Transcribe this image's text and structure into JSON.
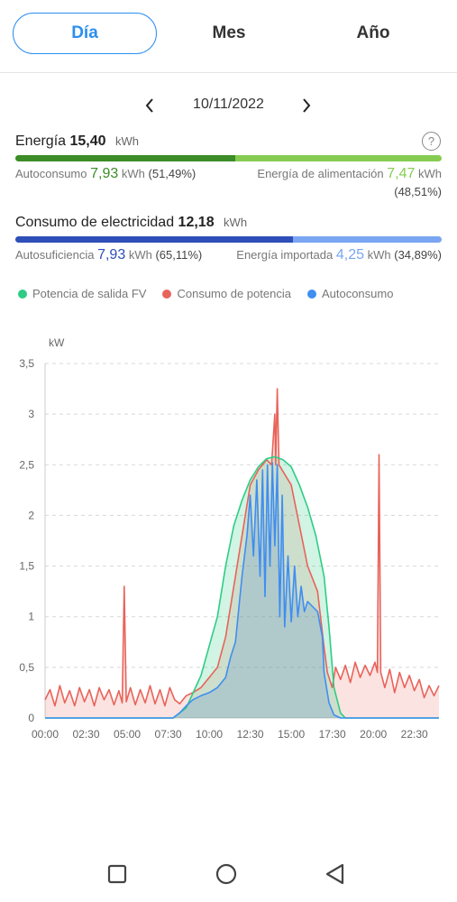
{
  "tabs": [
    {
      "label": "Día",
      "active": true
    },
    {
      "label": "Mes",
      "active": false
    },
    {
      "label": "Año",
      "active": false
    }
  ],
  "date": "10/11/2022",
  "energy": {
    "title": "Energía",
    "value": "15,40",
    "unit": "kWh",
    "self_label": "Autoconsumo",
    "self_value": "7,93",
    "self_unit": "kWh",
    "self_pct": "(51,49%)",
    "feed_label": "Energía de alimentación",
    "feed_value": "7,47",
    "feed_unit": "kWh",
    "feed_pct": "(48,51%)",
    "split_fraction": 0.5149
  },
  "consumption": {
    "title": "Consumo de electricidad",
    "value": "12,18",
    "unit": "kWh",
    "suff_label": "Autosuficiencia",
    "suff_value": "7,93",
    "suff_unit": "kWh",
    "suff_pct": "(65,11%)",
    "imp_label": "Energía importada",
    "imp_value": "4,25",
    "imp_unit": "kWh",
    "imp_pct": "(34,89%)",
    "split_fraction": 0.6511
  },
  "legend": [
    {
      "label": "Potencia de salida FV",
      "color": "#2ecc85"
    },
    {
      "label": "Consumo de potencia",
      "color": "#e8635a"
    },
    {
      "label": "Autoconsumo",
      "color": "#3f8ef0"
    }
  ],
  "colors": {
    "accent": "#2b8ff0",
    "energy_dark": "#3c8c27",
    "energy_light": "#86cc52",
    "cons_dark": "#2e4eb8",
    "cons_light": "#7aa5f2"
  },
  "chart_data": {
    "type": "area",
    "y_unit_label": "kW",
    "ylim": [
      0,
      3.5
    ],
    "y_ticks": [
      "0",
      "0,5",
      "1",
      "1,5",
      "2",
      "2,5",
      "3",
      "3,5"
    ],
    "x_ticks": [
      "00:00",
      "02:30",
      "05:00",
      "07:30",
      "10:00",
      "12:30",
      "15:00",
      "17:30",
      "20:00",
      "22:30"
    ],
    "x_unit": "hours",
    "xlim": [
      0,
      24
    ],
    "series": [
      {
        "name": "Potencia de salida FV",
        "color": "#2ecc85",
        "points": [
          [
            0,
            0
          ],
          [
            7.8,
            0
          ],
          [
            8.6,
            0.1
          ],
          [
            9.5,
            0.42
          ],
          [
            10.5,
            1.0
          ],
          [
            11,
            1.5
          ],
          [
            11.5,
            1.9
          ],
          [
            12,
            2.15
          ],
          [
            12.5,
            2.35
          ],
          [
            13,
            2.48
          ],
          [
            13.5,
            2.56
          ],
          [
            14,
            2.58
          ],
          [
            14.5,
            2.55
          ],
          [
            15,
            2.48
          ],
          [
            15.5,
            2.3
          ],
          [
            16,
            2.08
          ],
          [
            16.5,
            1.8
          ],
          [
            17,
            1.4
          ],
          [
            17.3,
            0.9
          ],
          [
            17.6,
            0.3
          ],
          [
            18,
            0.05
          ],
          [
            18.3,
            0
          ],
          [
            24,
            0
          ]
        ]
      },
      {
        "name": "Consumo de potencia",
        "color": "#e8635a",
        "points": [
          [
            0,
            0.18
          ],
          [
            0.3,
            0.28
          ],
          [
            0.6,
            0.12
          ],
          [
            0.9,
            0.32
          ],
          [
            1.2,
            0.15
          ],
          [
            1.5,
            0.27
          ],
          [
            1.8,
            0.12
          ],
          [
            2.1,
            0.3
          ],
          [
            2.4,
            0.16
          ],
          [
            2.7,
            0.28
          ],
          [
            3,
            0.12
          ],
          [
            3.3,
            0.3
          ],
          [
            3.6,
            0.18
          ],
          [
            3.9,
            0.28
          ],
          [
            4.2,
            0.13
          ],
          [
            4.5,
            0.27
          ],
          [
            4.7,
            0.15
          ],
          [
            4.82,
            1.3
          ],
          [
            4.95,
            0.16
          ],
          [
            5.2,
            0.3
          ],
          [
            5.5,
            0.13
          ],
          [
            5.8,
            0.28
          ],
          [
            6.1,
            0.15
          ],
          [
            6.4,
            0.32
          ],
          [
            6.7,
            0.14
          ],
          [
            7,
            0.28
          ],
          [
            7.3,
            0.12
          ],
          [
            7.6,
            0.3
          ],
          [
            7.9,
            0.18
          ],
          [
            8.2,
            0.14
          ],
          [
            8.6,
            0.22
          ],
          [
            9,
            0.25
          ],
          [
            9.5,
            0.3
          ],
          [
            10,
            0.4
          ],
          [
            10.5,
            0.5
          ],
          [
            11,
            0.8
          ],
          [
            11.5,
            1.3
          ],
          [
            12,
            1.8
          ],
          [
            12.5,
            2.3
          ],
          [
            13,
            2.45
          ],
          [
            13.5,
            2.55
          ],
          [
            13.8,
            2.5
          ],
          [
            14,
            3.0
          ],
          [
            14.05,
            2.5
          ],
          [
            14.15,
            3.25
          ],
          [
            14.25,
            2.5
          ],
          [
            15,
            2.3
          ],
          [
            16,
            1.5
          ],
          [
            16.6,
            1.25
          ],
          [
            17,
            0.7
          ],
          [
            17.2,
            0.45
          ],
          [
            17.5,
            0.3
          ],
          [
            17.7,
            0.5
          ],
          [
            18,
            0.38
          ],
          [
            18.3,
            0.52
          ],
          [
            18.6,
            0.35
          ],
          [
            18.9,
            0.55
          ],
          [
            19.2,
            0.4
          ],
          [
            19.5,
            0.52
          ],
          [
            19.8,
            0.42
          ],
          [
            20.1,
            0.55
          ],
          [
            20.25,
            0.45
          ],
          [
            20.35,
            2.6
          ],
          [
            20.45,
            0.45
          ],
          [
            20.7,
            0.3
          ],
          [
            21,
            0.48
          ],
          [
            21.3,
            0.25
          ],
          [
            21.6,
            0.45
          ],
          [
            21.9,
            0.3
          ],
          [
            22.2,
            0.42
          ],
          [
            22.5,
            0.27
          ],
          [
            22.8,
            0.38
          ],
          [
            23.1,
            0.2
          ],
          [
            23.4,
            0.32
          ],
          [
            23.7,
            0.22
          ],
          [
            24,
            0.32
          ]
        ]
      },
      {
        "name": "Autoconsumo",
        "color": "#3f8ef0",
        "points": [
          [
            0,
            0
          ],
          [
            7.8,
            0
          ],
          [
            8.2,
            0.05
          ],
          [
            8.6,
            0.12
          ],
          [
            9,
            0.18
          ],
          [
            9.5,
            0.22
          ],
          [
            10,
            0.25
          ],
          [
            10.5,
            0.3
          ],
          [
            11,
            0.4
          ],
          [
            11.3,
            0.6
          ],
          [
            11.6,
            0.75
          ],
          [
            12,
            1.4
          ],
          [
            12.3,
            1.8
          ],
          [
            12.5,
            2.2
          ],
          [
            12.7,
            1.6
          ],
          [
            12.9,
            2.35
          ],
          [
            13.1,
            1.4
          ],
          [
            13.25,
            2.45
          ],
          [
            13.4,
            1.2
          ],
          [
            13.55,
            2.5
          ],
          [
            13.7,
            1.5
          ],
          [
            13.85,
            2.52
          ],
          [
            14,
            1.7
          ],
          [
            14.15,
            2.5
          ],
          [
            14.3,
            1.0
          ],
          [
            14.45,
            2.2
          ],
          [
            14.6,
            0.9
          ],
          [
            14.8,
            1.6
          ],
          [
            15,
            0.95
          ],
          [
            15.2,
            1.5
          ],
          [
            15.4,
            1.0
          ],
          [
            15.6,
            1.3
          ],
          [
            15.8,
            1.05
          ],
          [
            16,
            1.15
          ],
          [
            16.3,
            1.1
          ],
          [
            16.6,
            1.05
          ],
          [
            16.9,
            0.8
          ],
          [
            17,
            0.45
          ],
          [
            17.3,
            0.15
          ],
          [
            17.6,
            0.03
          ],
          [
            18,
            0
          ],
          [
            24,
            0
          ]
        ]
      }
    ]
  }
}
